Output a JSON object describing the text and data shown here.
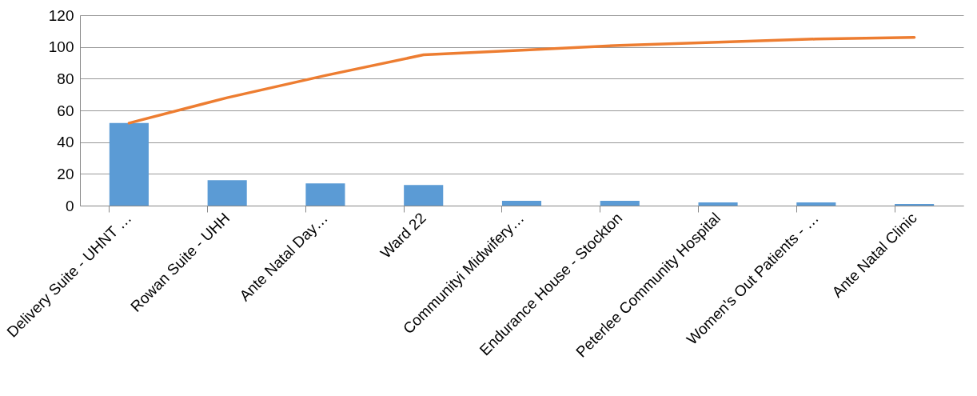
{
  "chart_data": {
    "type": "bar",
    "categories": [
      "Delivery Suite - UHNT …",
      "Rowan Suite - UHH",
      "Ante Natal Day…",
      "Ward 22",
      "Communityi Midwifery…",
      "Endurance House - Stockton",
      "Peterlee Community Hospital",
      "Women's Out Patients - …",
      "Ante Natal Clinic"
    ],
    "series": [
      {
        "color": "#5b9bd5",
        "values": [
          52,
          16,
          14,
          13,
          3,
          3,
          2,
          2,
          1
        ]
      },
      {
        "type": "line",
        "color": "#ed7d31",
        "values": [
          52,
          68,
          82,
          95,
          98,
          101,
          103,
          105,
          106
        ]
      }
    ],
    "ylim": [
      0,
      120
    ],
    "yticks": [
      0,
      20,
      40,
      60,
      80,
      100,
      120
    ],
    "grid": "y"
  }
}
